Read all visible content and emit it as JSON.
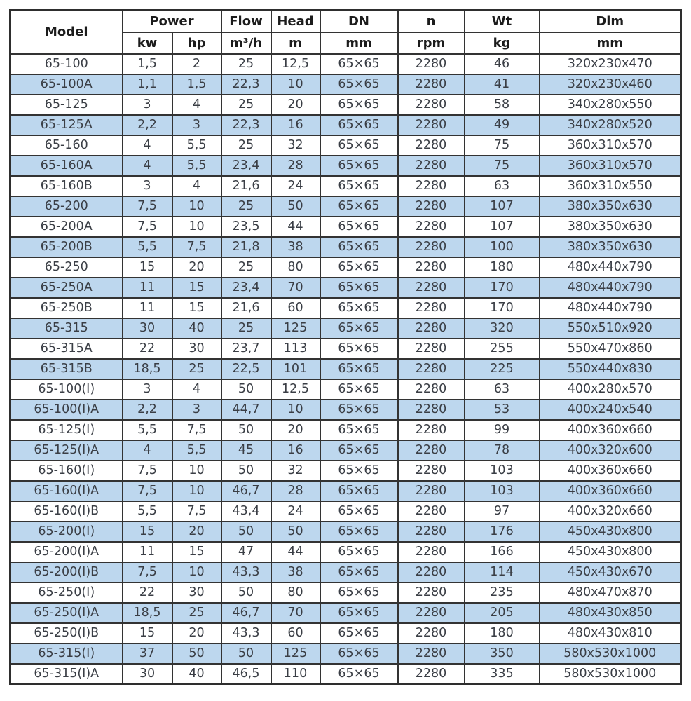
{
  "colors": {
    "stripe": "#BDD7EE",
    "border": "#333333",
    "header_text": "#1C1C1C",
    "body_text": "#3A3E45"
  },
  "table": {
    "headers": {
      "model": "Model",
      "power": "Power",
      "power_kw": "kw",
      "power_hp": "hp",
      "flow": "Flow",
      "flow_unit": "m³/h",
      "head": "Head",
      "head_unit": "m",
      "dn": "DN",
      "dn_unit": "mm",
      "n": "n",
      "n_unit": "rpm",
      "wt": "Wt",
      "wt_unit": "kg",
      "dim": "Dim",
      "dim_unit": "mm"
    },
    "rows": [
      {
        "model": "65-100",
        "kw": "1,5",
        "hp": "2",
        "flow": "25",
        "head": "12,5",
        "dn": "65×65",
        "n": "2280",
        "wt": "46",
        "dim": "320x230x470"
      },
      {
        "model": "65-100A",
        "kw": "1,1",
        "hp": "1,5",
        "flow": "22,3",
        "head": "10",
        "dn": "65×65",
        "n": "2280",
        "wt": "41",
        "dim": "320x230x460"
      },
      {
        "model": "65-125",
        "kw": "3",
        "hp": "4",
        "flow": "25",
        "head": "20",
        "dn": "65×65",
        "n": "2280",
        "wt": "58",
        "dim": "340x280x550"
      },
      {
        "model": "65-125A",
        "kw": "2,2",
        "hp": "3",
        "flow": "22,3",
        "head": "16",
        "dn": "65×65",
        "n": "2280",
        "wt": "49",
        "dim": "340x280x520"
      },
      {
        "model": "65-160",
        "kw": "4",
        "hp": "5,5",
        "flow": "25",
        "head": "32",
        "dn": "65×65",
        "n": "2280",
        "wt": "75",
        "dim": "360x310x570"
      },
      {
        "model": "65-160A",
        "kw": "4",
        "hp": "5,5",
        "flow": "23,4",
        "head": "28",
        "dn": "65×65",
        "n": "2280",
        "wt": "75",
        "dim": "360x310x570"
      },
      {
        "model": "65-160B",
        "kw": "3",
        "hp": "4",
        "flow": "21,6",
        "head": "24",
        "dn": "65×65",
        "n": "2280",
        "wt": "63",
        "dim": "360x310x550"
      },
      {
        "model": "65-200",
        "kw": "7,5",
        "hp": "10",
        "flow": "25",
        "head": "50",
        "dn": "65×65",
        "n": "2280",
        "wt": "107",
        "dim": "380x350x630"
      },
      {
        "model": "65-200A",
        "kw": "7,5",
        "hp": "10",
        "flow": "23,5",
        "head": "44",
        "dn": "65×65",
        "n": "2280",
        "wt": "107",
        "dim": "380x350x630"
      },
      {
        "model": "65-200B",
        "kw": "5,5",
        "hp": "7,5",
        "flow": "21,8",
        "head": "38",
        "dn": "65×65",
        "n": "2280",
        "wt": "100",
        "dim": "380x350x630"
      },
      {
        "model": "65-250",
        "kw": "15",
        "hp": "20",
        "flow": "25",
        "head": "80",
        "dn": "65×65",
        "n": "2280",
        "wt": "180",
        "dim": "480x440x790"
      },
      {
        "model": "65-250A",
        "kw": "11",
        "hp": "15",
        "flow": "23,4",
        "head": "70",
        "dn": "65×65",
        "n": "2280",
        "wt": "170",
        "dim": "480x440x790"
      },
      {
        "model": "65-250B",
        "kw": "11",
        "hp": "15",
        "flow": "21,6",
        "head": "60",
        "dn": "65×65",
        "n": "2280",
        "wt": "170",
        "dim": "480x440x790"
      },
      {
        "model": "65-315",
        "kw": "30",
        "hp": "40",
        "flow": "25",
        "head": "125",
        "dn": "65×65",
        "n": "2280",
        "wt": "320",
        "dim": "550x510x920"
      },
      {
        "model": "65-315A",
        "kw": "22",
        "hp": "30",
        "flow": "23,7",
        "head": "113",
        "dn": "65×65",
        "n": "2280",
        "wt": "255",
        "dim": "550x470x860"
      },
      {
        "model": "65-315B",
        "kw": "18,5",
        "hp": "25",
        "flow": "22,5",
        "head": "101",
        "dn": "65×65",
        "n": "2280",
        "wt": "225",
        "dim": "550x440x830"
      },
      {
        "model": "65-100(I)",
        "kw": "3",
        "hp": "4",
        "flow": "50",
        "head": "12,5",
        "dn": "65×65",
        "n": "2280",
        "wt": "63",
        "dim": "400x280x570"
      },
      {
        "model": "65-100(I)A",
        "kw": "2,2",
        "hp": "3",
        "flow": "44,7",
        "head": "10",
        "dn": "65×65",
        "n": "2280",
        "wt": "53",
        "dim": "400x240x540"
      },
      {
        "model": "65-125(I)",
        "kw": "5,5",
        "hp": "7,5",
        "flow": "50",
        "head": "20",
        "dn": "65×65",
        "n": "2280",
        "wt": "99",
        "dim": "400x360x660"
      },
      {
        "model": "65-125(I)A",
        "kw": "4",
        "hp": "5,5",
        "flow": "45",
        "head": "16",
        "dn": "65×65",
        "n": "2280",
        "wt": "78",
        "dim": "400x320x600"
      },
      {
        "model": "65-160(I)",
        "kw": "7,5",
        "hp": "10",
        "flow": "50",
        "head": "32",
        "dn": "65×65",
        "n": "2280",
        "wt": "103",
        "dim": "400x360x660"
      },
      {
        "model": "65-160(I)A",
        "kw": "7,5",
        "hp": "10",
        "flow": "46,7",
        "head": "28",
        "dn": "65×65",
        "n": "2280",
        "wt": "103",
        "dim": "400x360x660"
      },
      {
        "model": "65-160(I)B",
        "kw": "5,5",
        "hp": "7,5",
        "flow": "43,4",
        "head": "24",
        "dn": "65×65",
        "n": "2280",
        "wt": "97",
        "dim": "400x320x660"
      },
      {
        "model": "65-200(I)",
        "kw": "15",
        "hp": "20",
        "flow": "50",
        "head": "50",
        "dn": "65×65",
        "n": "2280",
        "wt": "176",
        "dim": "450x430x800"
      },
      {
        "model": "65-200(I)A",
        "kw": "11",
        "hp": "15",
        "flow": "47",
        "head": "44",
        "dn": "65×65",
        "n": "2280",
        "wt": "166",
        "dim": "450x430x800"
      },
      {
        "model": "65-200(I)B",
        "kw": "7,5",
        "hp": "10",
        "flow": "43,3",
        "head": "38",
        "dn": "65×65",
        "n": "2280",
        "wt": "114",
        "dim": "450x430x670"
      },
      {
        "model": "65-250(I)",
        "kw": "22",
        "hp": "30",
        "flow": "50",
        "head": "80",
        "dn": "65×65",
        "n": "2280",
        "wt": "235",
        "dim": "480x470x870"
      },
      {
        "model": "65-250(I)A",
        "kw": "18,5",
        "hp": "25",
        "flow": "46,7",
        "head": "70",
        "dn": "65×65",
        "n": "2280",
        "wt": "205",
        "dim": "480x430x850"
      },
      {
        "model": "65-250(I)B",
        "kw": "15",
        "hp": "20",
        "flow": "43,3",
        "head": "60",
        "dn": "65×65",
        "n": "2280",
        "wt": "180",
        "dim": "480x430x810"
      },
      {
        "model": "65-315(I)",
        "kw": "37",
        "hp": "50",
        "flow": "50",
        "head": "125",
        "dn": "65×65",
        "n": "2280",
        "wt": "350",
        "dim": "580x530x1000"
      },
      {
        "model": "65-315(I)A",
        "kw": "30",
        "hp": "40",
        "flow": "46,5",
        "head": "110",
        "dn": "65×65",
        "n": "2280",
        "wt": "335",
        "dim": "580x530x1000"
      }
    ]
  }
}
